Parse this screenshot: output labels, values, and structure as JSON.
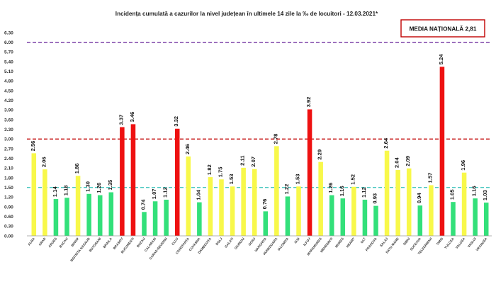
{
  "chart_data": {
    "type": "bar",
    "title": "Incidența cumulată a cazurilor la nivel județean în ultimele 14 zile la ‰ de locuitori - 12.03.2021*",
    "national_average_label": "MEDIA NAȚIONALĂ  2,81",
    "ylim": [
      0,
      6.3
    ],
    "yticks": [
      "0.00",
      "0.30",
      "0.60",
      "0.90",
      "1.20",
      "1.50",
      "1.80",
      "2.10",
      "2.40",
      "2.70",
      "3.00",
      "3.30",
      "3.60",
      "3.90",
      "4.20",
      "4.50",
      "4.80",
      "5.10",
      "5.40",
      "5.70",
      "6.00",
      "6.30"
    ],
    "grid": false,
    "categories": [
      "ALBA",
      "ARAD",
      "ARGES",
      "BACAU",
      "BIHOR",
      "BISTRITA NASAUD",
      "BOTOSANI",
      "BRAILA",
      "BRASOV",
      "BUCURESTI",
      "BUZAU",
      "CALARASI",
      "CARAS-SEVERIN",
      "CLUJ",
      "CONSTANTA",
      "COVASNA",
      "DAMBOVITA",
      "DOLJ",
      "GALATI",
      "GIURGIU",
      "GORJ",
      "HARGHITA",
      "HUNEDOARA",
      "IALOMITA",
      "IASI",
      "ILFOV",
      "MARAMURES",
      "MEHEDINTI",
      "MURES",
      "NEAMT",
      "OLT",
      "PRAHOVA",
      "SALAJ",
      "SATU MARE",
      "SIBIU",
      "SUCEAVA",
      "TELEORMAN",
      "TIMIS",
      "TULCEA",
      "VALCEA",
      "VASLUI",
      "VRANCEA"
    ],
    "values": [
      2.56,
      2.06,
      1.14,
      1.18,
      1.86,
      1.3,
      1.26,
      1.35,
      3.37,
      3.46,
      0.74,
      1.07,
      1.12,
      3.32,
      2.46,
      1.04,
      1.82,
      1.75,
      1.53,
      2.11,
      2.07,
      0.76,
      2.78,
      1.22,
      1.53,
      3.92,
      2.29,
      1.26,
      1.16,
      1.52,
      1.12,
      0.93,
      2.64,
      2.04,
      2.09,
      0.94,
      1.57,
      5.24,
      1.05,
      1.96,
      1.16,
      1.03
    ],
    "value_labels": [
      "2.56",
      "2.06",
      "1.14",
      "1.18",
      "1.86",
      "1.30",
      "1.26",
      "1.35",
      "3.37",
      "3.46",
      "0.74",
      "1.07",
      "1.12",
      "3.32",
      "2.46",
      "1.04",
      "1.82",
      "1.75",
      "1.53",
      "2.11",
      "2.07",
      "0.76",
      "2.78",
      "1.22",
      "1.53",
      "3.92",
      "2.29",
      "1.26",
      "1.16",
      "1.52",
      "1.12",
      "0.93",
      "2.64",
      "2.04",
      "2.09",
      "0.94",
      "1.57",
      "5.24",
      "1.05",
      "1.96",
      "1.16",
      "1.03"
    ],
    "threshold_lines": [
      {
        "value": 6.0,
        "color": "#7030a0",
        "style": "dashed"
      },
      {
        "value": 3.0,
        "color": "#c00000",
        "style": "dashed"
      },
      {
        "value": 1.5,
        "color": "#4bc8c0",
        "style": "dashed"
      }
    ],
    "colors": {
      "low": "#33e07a",
      "medium": "#f8f84a",
      "high": "#ee1111",
      "box_border": "#c00000"
    }
  }
}
